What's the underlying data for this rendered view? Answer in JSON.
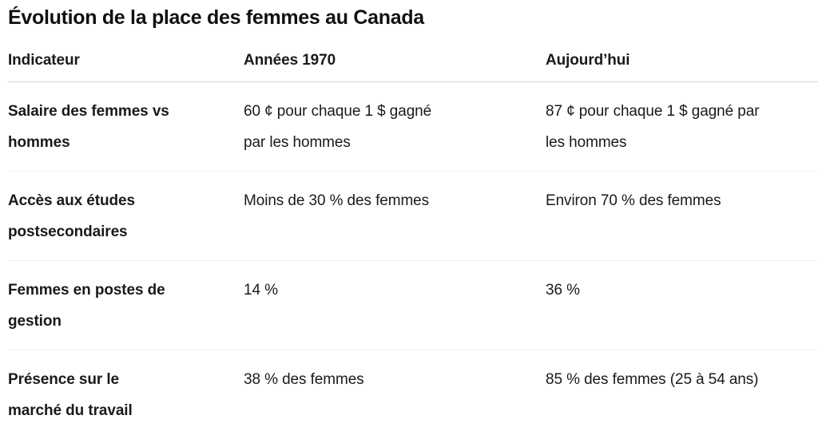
{
  "table": {
    "title": "Évolution de la place des femmes au Canada",
    "headers": {
      "indicator": "Indicateur",
      "annees_1970": "Années 1970",
      "aujourdhui": "Aujourd’hui"
    },
    "rows": [
      {
        "indicator": "Salaire des femmes vs\nhommes",
        "annees_1970": "60 ¢ pour chaque 1 $ gagné\npar les hommes",
        "aujourdhui": "87 ¢ pour chaque 1 $ gagné par\nles hommes"
      },
      {
        "indicator": "Accès aux études\npostsecondaires",
        "annees_1970": "Moins de 30 % des femmes",
        "aujourdhui": "Environ 70 % des femmes"
      },
      {
        "indicator": "Femmes en postes de\ngestion",
        "annees_1970": "14 %",
        "aujourdhui": "36 %"
      },
      {
        "indicator": "Présence sur le\nmarché du travail",
        "annees_1970": "38 % des femmes",
        "aujourdhui": "85 % des femmes (25 à 54 ans)"
      }
    ],
    "colors": {
      "text": "#1a1a1a",
      "header_divider": "#d5d5d5",
      "row_divider": "#f1f1f1",
      "background": "#ffffff"
    }
  },
  "chart_data": {
    "type": "table",
    "title": "Évolution de la place des femmes au Canada",
    "columns": [
      "Indicateur",
      "Années 1970",
      "Aujourd’hui"
    ],
    "rows": [
      [
        "Salaire des femmes vs hommes",
        "60 ¢ pour chaque 1 $ gagné par les hommes",
        "87 ¢ pour chaque 1 $ gagné par les hommes"
      ],
      [
        "Accès aux études postsecondaires",
        "Moins de 30 % des femmes",
        "Environ 70 % des femmes"
      ],
      [
        "Femmes en postes de gestion",
        "14 %",
        "36 %"
      ],
      [
        "Présence sur le marché du travail",
        "38 % des femmes",
        "85 % des femmes (25 à 54 ans)"
      ]
    ],
    "layout_hints": {
      "header_bold": true,
      "first_column_bold": true,
      "grid": "horizontal-dividers-only"
    }
  }
}
